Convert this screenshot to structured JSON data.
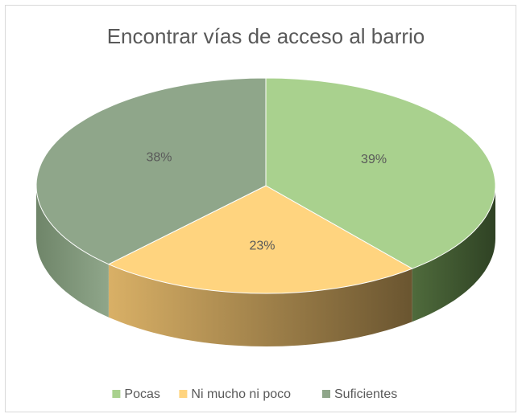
{
  "chart_data": {
    "type": "pie",
    "title": "Encontrar  vías de acceso al barrio",
    "categories": [
      "Pocas",
      "Ni mucho ni poco",
      "Suficientes"
    ],
    "values": [
      39,
      23,
      38
    ],
    "value_labels": [
      "39%",
      "23%",
      "38%"
    ],
    "colors": [
      "#a9d18e",
      "#ffd47f",
      "#8fa68a"
    ],
    "legend": "bottom"
  }
}
